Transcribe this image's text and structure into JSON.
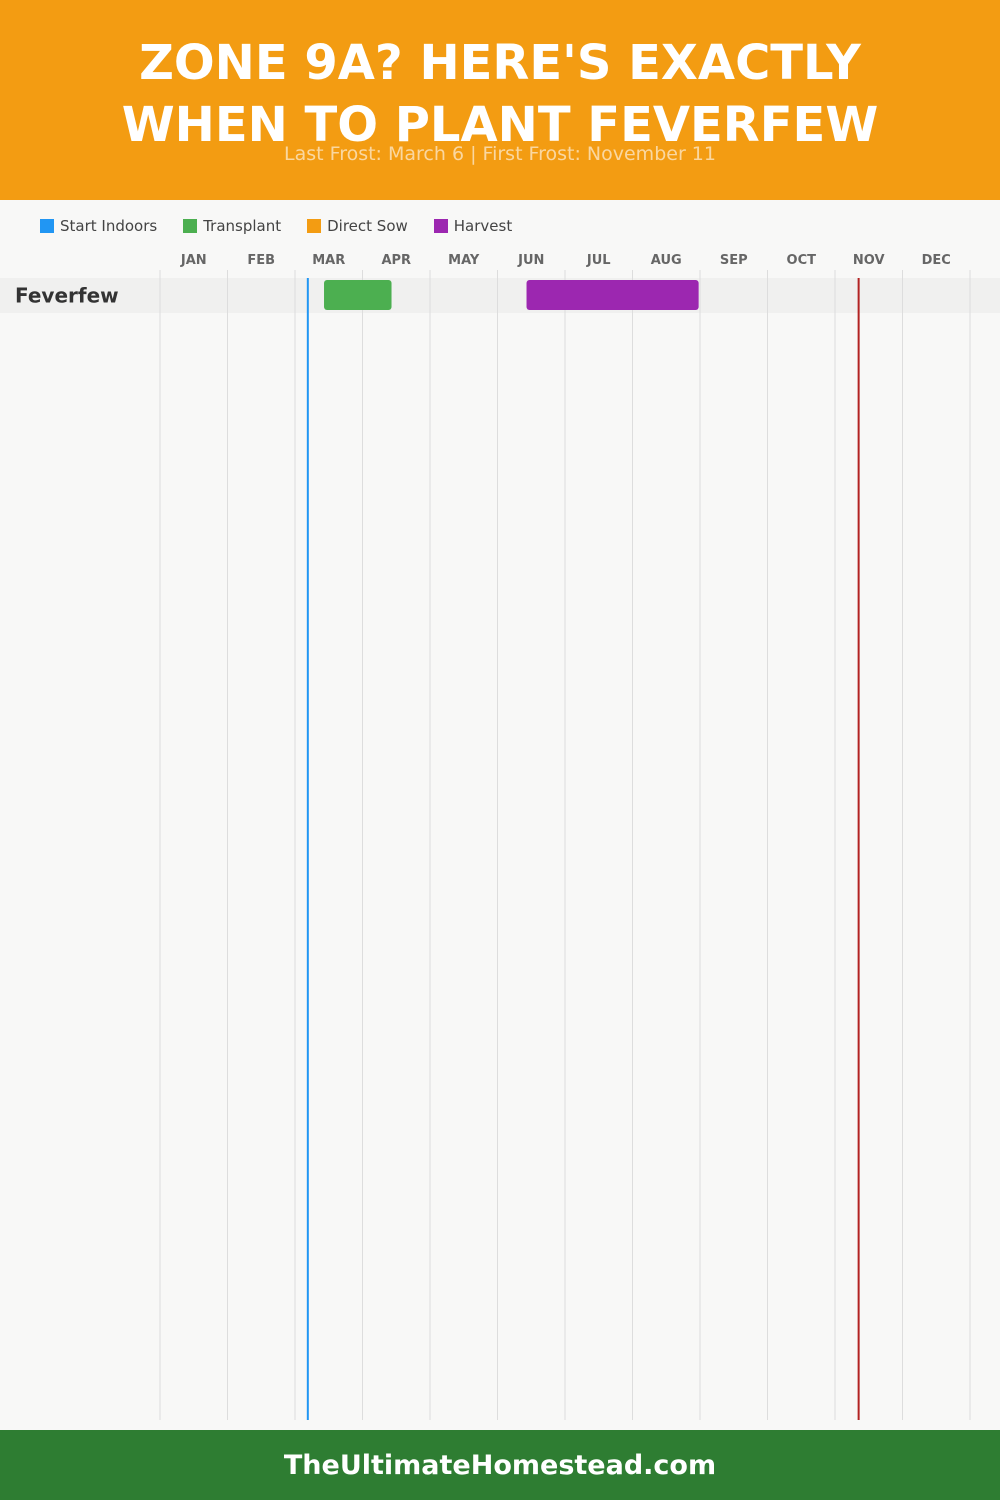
{
  "header": {
    "title_line1": "ZONE 9A? HERE'S EXACTLY",
    "title_line2": "WHEN TO PLANT FEVERFEW",
    "subtitle": "Last Frost: March 6 | First Frost: November 11",
    "background_color": "#f39c12"
  },
  "legend": [
    {
      "label": "Start Indoors",
      "color": "#2196f3"
    },
    {
      "label": "Transplant",
      "color": "#4caf50"
    },
    {
      "label": "Direct Sow",
      "color": "#f39c12"
    },
    {
      "label": "Harvest",
      "color": "#9c27b0"
    }
  ],
  "chart_data": {
    "type": "gantt",
    "months": [
      "JAN",
      "FEB",
      "MAR",
      "APR",
      "MAY",
      "JUN",
      "JUL",
      "AUG",
      "SEP",
      "OCT",
      "NOV",
      "DEC"
    ],
    "rows": [
      {
        "name": "Feverfew",
        "bars": [
          {
            "activity": "Transplant",
            "start_month": 3.43,
            "end_month": 4.43,
            "color": "#4caf50"
          },
          {
            "activity": "Harvest",
            "start_month": 6.43,
            "end_month": 8.98,
            "color": "#9c27b0"
          }
        ]
      }
    ],
    "markers": [
      {
        "event": "Last Frost",
        "month": 3.19,
        "color": "#2196f3"
      },
      {
        "event": "First Frost",
        "month": 11.35,
        "color": "#b22222"
      }
    ],
    "grid": true
  },
  "footer": {
    "text": "TheUltimateHomestead.com",
    "background_color": "#2e7d32"
  }
}
